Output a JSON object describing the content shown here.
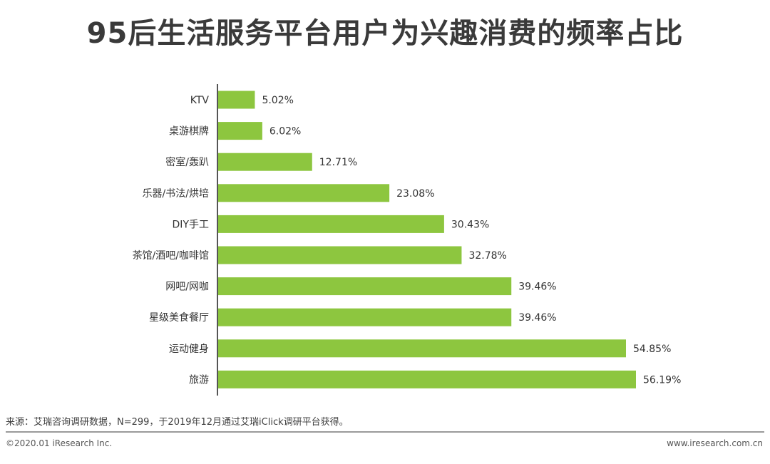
{
  "title": "95后生活服务平台用户为兴趣消费的频率占比",
  "chart_data": {
    "type": "bar",
    "orientation": "horizontal",
    "categories": [
      "KTV",
      "桌游棋牌",
      "密室/轰趴",
      "乐器/书法/烘培",
      "DIY手工",
      "茶馆/酒吧/咖啡馆",
      "网吧/网咖",
      "星级美食餐厅",
      "运动健身",
      "旅游"
    ],
    "values": [
      5.02,
      6.02,
      12.71,
      23.08,
      30.43,
      32.78,
      39.46,
      39.46,
      54.85,
      56.19
    ],
    "labels": [
      "5.02%",
      "6.02%",
      "12.71%",
      "23.08%",
      "30.43%",
      "32.78%",
      "39.46%",
      "39.46%",
      "54.85%",
      "56.19%"
    ],
    "unit": "%",
    "bar_color": "#8dc63f",
    "grid": false,
    "legend": "none"
  },
  "footer": {
    "source": "来源：艾瑞咨询调研数据，N=299，于2019年12月通过艾瑞iClick调研平台获得。",
    "copyright": "©2020.01 iResearch Inc.",
    "site": "www.iresearch.com.cn"
  }
}
